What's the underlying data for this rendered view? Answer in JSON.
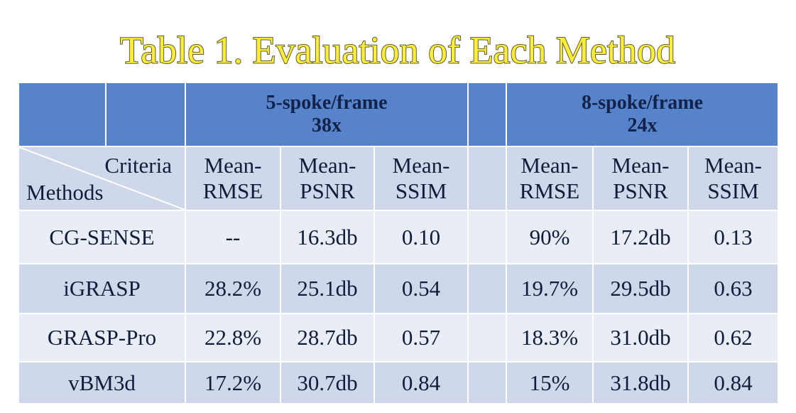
{
  "title": "Table 1. Evaluation of Each Method",
  "header": {
    "groups": [
      {
        "name": "5-spoke/frame",
        "factor": "38x",
        "columns": [
          [
            "Mean-",
            "RMSE"
          ],
          [
            "Mean-",
            "PSNR"
          ],
          [
            "Mean-",
            "SSIM"
          ]
        ]
      },
      {
        "name": "8-spoke/frame",
        "factor": "24x",
        "columns": [
          [
            "Mean-",
            "RMSE"
          ],
          [
            "Mean-",
            "PSNR"
          ],
          [
            "Mean-",
            "SSIM"
          ]
        ]
      }
    ]
  },
  "corner": {
    "criteria": "Criteria",
    "methods": "Methods"
  },
  "rows": [
    {
      "method": "CG-SENSE",
      "cells": [
        "--",
        "16.3db",
        "0.10",
        "90%",
        "17.2db",
        "0.13"
      ]
    },
    {
      "method": "iGRASP",
      "cells": [
        "28.2%",
        "25.1db",
        "0.54",
        "19.7%",
        "29.5db",
        "0.63"
      ]
    },
    {
      "method": "GRASP-Pro",
      "cells": [
        "22.8%",
        "28.7db",
        "0.57",
        "18.3%",
        "31.0db",
        "0.62"
      ]
    },
    {
      "method": "vBM3d",
      "cells": [
        "17.2%",
        "30.7db",
        "0.84",
        "15%",
        "31.8db",
        "0.84"
      ]
    }
  ]
}
